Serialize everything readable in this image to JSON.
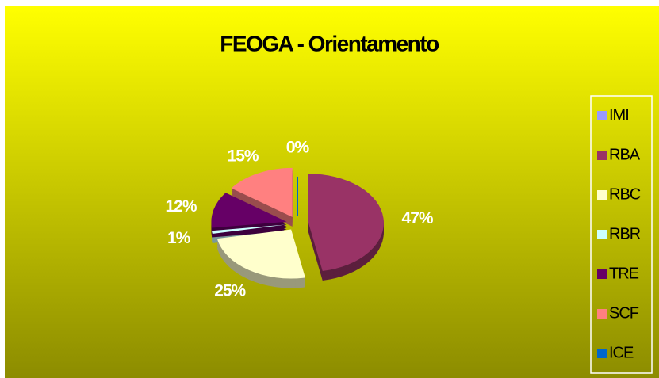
{
  "chart_data": {
    "type": "pie",
    "title": "FEOGA - Orientamento",
    "categories": [
      "IMI",
      "RBA",
      "RBC",
      "RBR",
      "TRE",
      "SCF",
      "ICE"
    ],
    "values": [
      0,
      47,
      25,
      1,
      12,
      15,
      0
    ],
    "value_labels": [
      "0%",
      "47%",
      "25%",
      "1%",
      "12%",
      "15%",
      "0%"
    ],
    "colors": [
      "#9999ff",
      "#993366",
      "#ffffcc",
      "#ccffff",
      "#660066",
      "#ff8080",
      "#0066cc"
    ],
    "legend": "right"
  }
}
